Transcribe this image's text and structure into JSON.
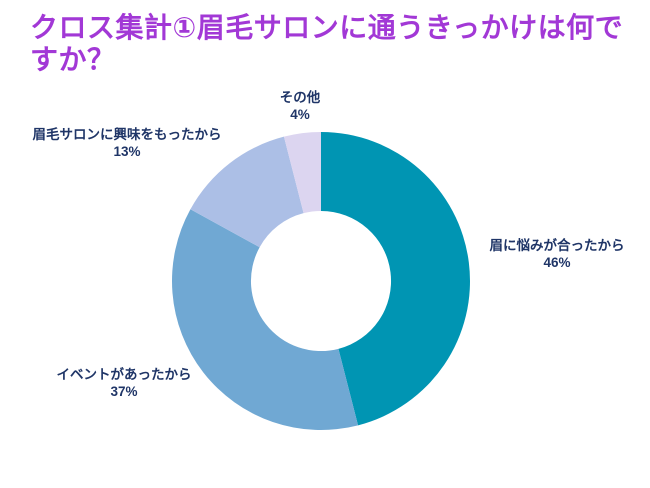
{
  "title": "クロス集計①眉毛サロンに通うきっかけは何ですか？",
  "colors": {
    "background": "#FFFFFF",
    "title_text": "#A238D6",
    "label_text": "#1F3567"
  },
  "chart_data": {
    "type": "pie",
    "subtype": "donut",
    "title": "クロス集計①眉毛サロンに通うきっかけは何ですか？",
    "start_angle_deg": 0,
    "direction": "clockwise",
    "inner_radius_ratio": 0.47,
    "grid": false,
    "legend_position": "none",
    "labels_position": "outside",
    "segments": [
      {
        "label": "眉に悩みが合ったから",
        "value": 46,
        "pct": "46%",
        "color": "#0095B3"
      },
      {
        "label": "イベントがあったから",
        "value": 37,
        "pct": "37%",
        "color": "#70A8D3"
      },
      {
        "label": "眉毛サロンに興味をもったから",
        "value": 13,
        "pct": "13%",
        "color": "#ACBFE6"
      },
      {
        "label": "その他",
        "value": 4,
        "pct": "4%",
        "color": "#DCD5F0"
      }
    ]
  }
}
